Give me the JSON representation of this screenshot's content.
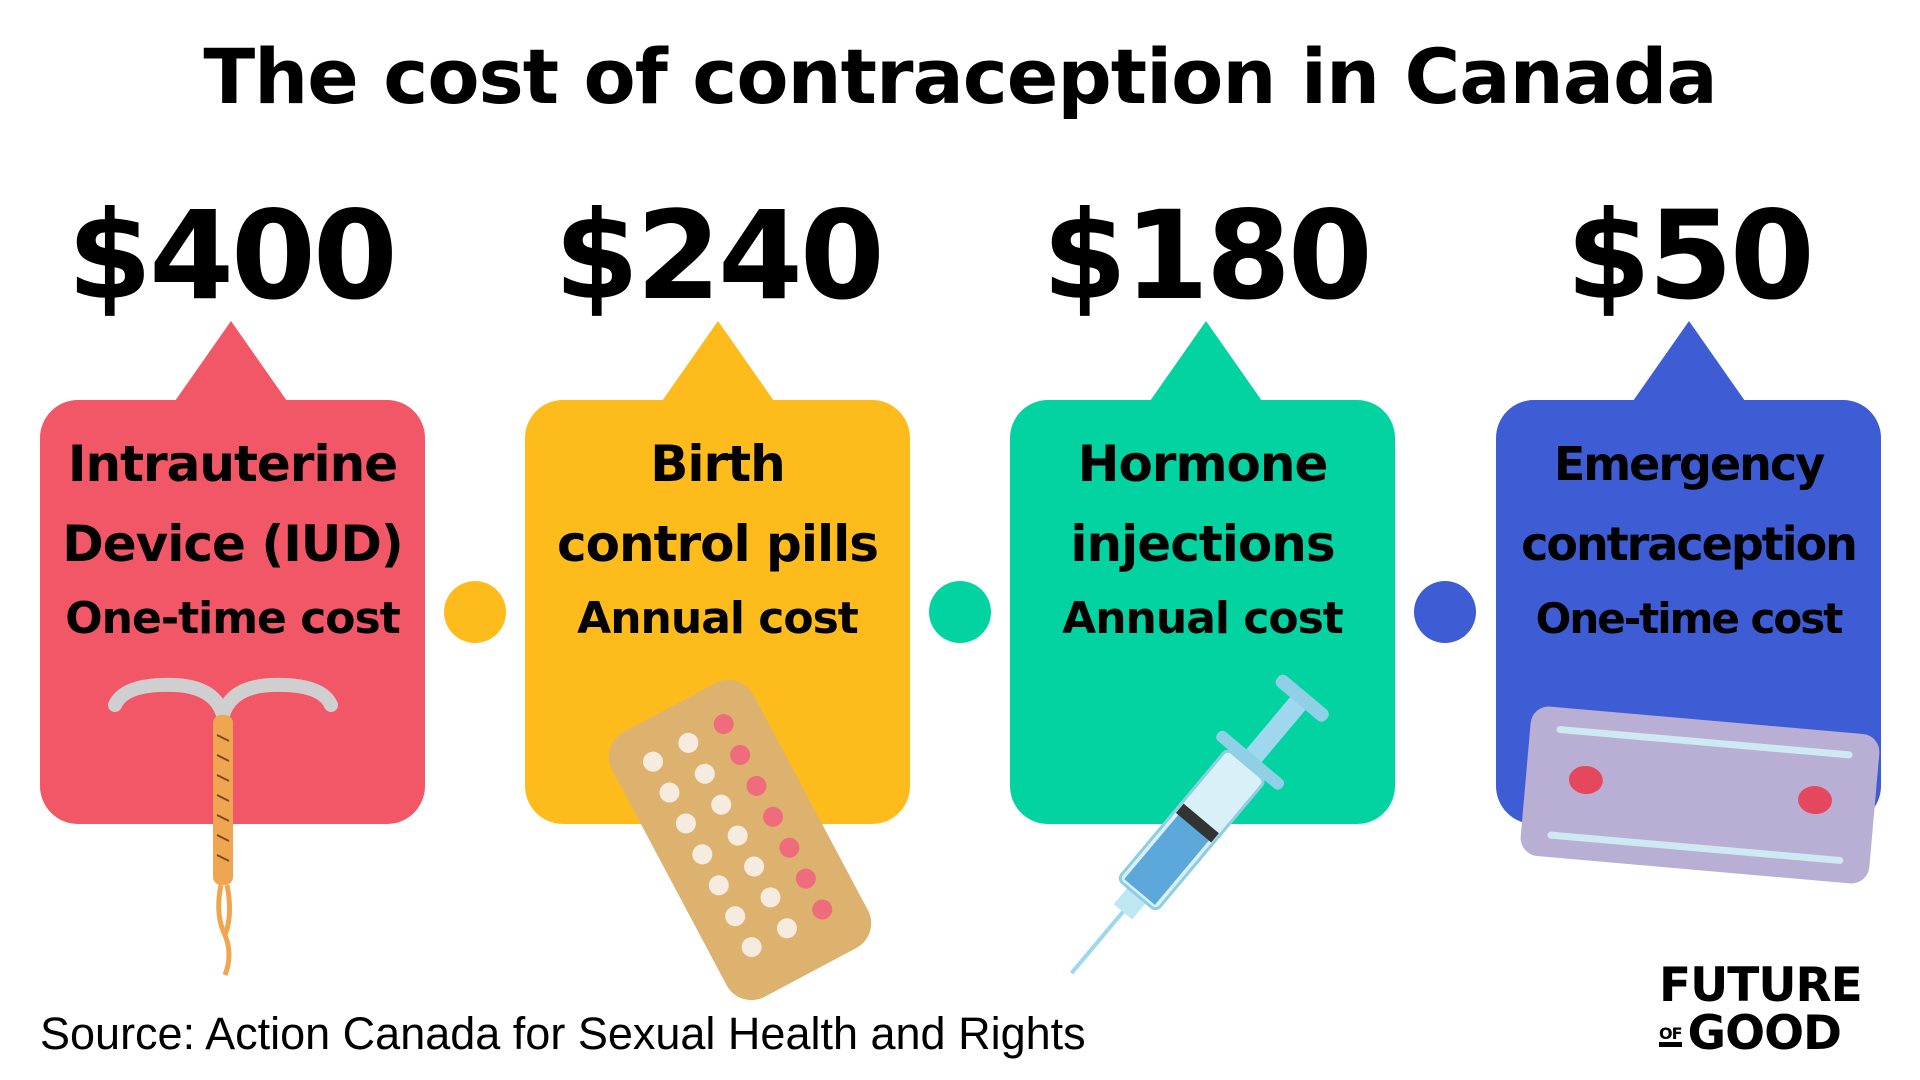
{
  "title": "The cost of contraception in Canada",
  "items": [
    {
      "price": "$400",
      "line1": "Intrauterine",
      "line2": "Device (IUD)",
      "line3": "One-time cost",
      "color": "#F25767",
      "illustration": "iud-icon"
    },
    {
      "price": "$240",
      "line1": "Birth",
      "line2": "control pills",
      "line3": "Annual cost",
      "color": "#FDBB1C",
      "illustration": "pill-pack-icon"
    },
    {
      "price": "$180",
      "line1": "Hormone",
      "line2": "injections",
      "line3": "Annual cost",
      "color": "#03D3A1",
      "illustration": "syringe-icon"
    },
    {
      "price": "$50",
      "line1": "Emergency",
      "line2": "contraception",
      "line3": "One-time cost",
      "color": "#3E5CD3",
      "illustration": "emergency-pill-icon"
    }
  ],
  "source": "Source: Action Canada for Sexual Health and Rights",
  "logo": {
    "line1": "FUTURE",
    "of": "OF",
    "line2": "GOOD"
  }
}
